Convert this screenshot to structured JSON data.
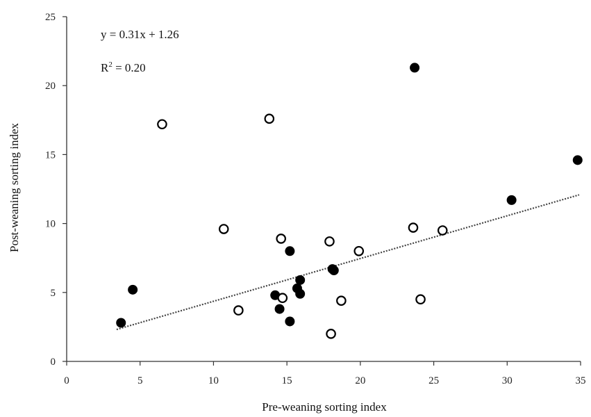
{
  "chart_data": {
    "type": "scatter",
    "title": "",
    "xlabel": "Pre-weaning sorting index",
    "ylabel": "Post-weaning sorting index",
    "xlim": [
      0,
      35
    ],
    "ylim": [
      0,
      25
    ],
    "xticks": [
      "0",
      "5",
      "10",
      "15",
      "20",
      "25",
      "30",
      "35"
    ],
    "yticks": [
      "0",
      "5",
      "10",
      "15",
      "20",
      "25"
    ],
    "grid": false,
    "series": [
      {
        "marker": "filled",
        "color": "#000000",
        "points": [
          [
            3.7,
            2.8
          ],
          [
            4.5,
            5.2
          ],
          [
            14.2,
            4.8
          ],
          [
            14.5,
            3.8
          ],
          [
            15.2,
            2.9
          ],
          [
            15.2,
            8.0
          ],
          [
            15.7,
            5.3
          ],
          [
            15.9,
            5.9
          ],
          [
            15.9,
            4.9
          ],
          [
            18.1,
            6.7
          ],
          [
            18.2,
            6.6
          ],
          [
            23.7,
            21.3
          ],
          [
            30.3,
            11.7
          ],
          [
            34.8,
            14.6
          ]
        ]
      },
      {
        "marker": "open",
        "color": "#000000",
        "points": [
          [
            6.5,
            17.2
          ],
          [
            10.7,
            9.6
          ],
          [
            11.7,
            3.7
          ],
          [
            13.8,
            17.6
          ],
          [
            14.6,
            8.9
          ],
          [
            14.7,
            4.6
          ],
          [
            17.9,
            8.7
          ],
          [
            18.0,
            2.0
          ],
          [
            18.7,
            4.4
          ],
          [
            19.9,
            8.0
          ],
          [
            23.6,
            9.7
          ],
          [
            24.1,
            4.5
          ],
          [
            25.6,
            9.5
          ]
        ]
      }
    ],
    "trendline": {
      "slope": 0.31,
      "intercept": 1.26,
      "x_range": [
        3.4,
        34.9
      ],
      "style": "dotted"
    },
    "annotations": {
      "equation": "y = 0.31x + 1.26",
      "r2_prefix": "R",
      "r2_sup": "2",
      "r2_suffix": " = 0.20"
    }
  }
}
